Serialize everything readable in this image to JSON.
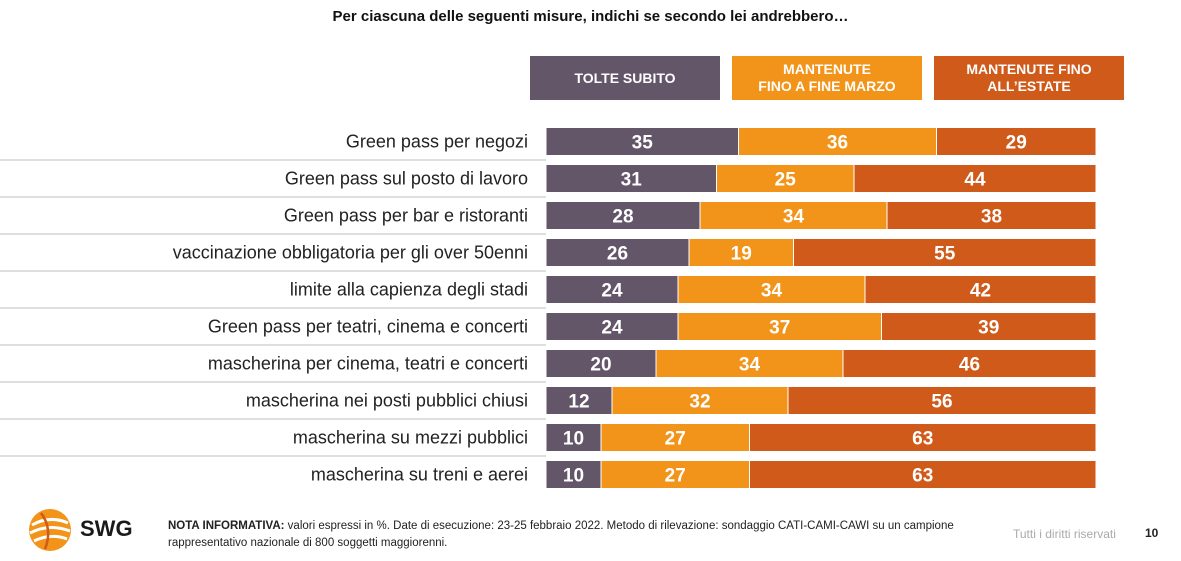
{
  "title": "Per ciascuna delle seguenti misure, indichi se secondo lei andrebbero…",
  "colors": {
    "tolte": "#635669",
    "fine_marzo": "#F29419",
    "estate": "#CF5A1A"
  },
  "chart_data": {
    "type": "bar",
    "orientation": "horizontal",
    "stacked": true,
    "title": "Per ciascuna delle seguenti misure, indichi se secondo lei andrebbero…",
    "legend_position": "top-right",
    "categories": [
      "Green pass per negozi",
      "Green pass sul posto di lavoro",
      "Green pass per bar e ristoranti",
      "vaccinazione obbligatoria per gli over 50enni",
      "limite alla capienza degli stadi",
      "Green pass per teatri, cinema e concerti",
      "mascherina per cinema, teatri e concerti",
      "mascherina nei posti pubblici chiusi",
      "mascherina su mezzi pubblici",
      "mascherina su treni e aerei"
    ],
    "series": [
      {
        "name": "TOLTE SUBITO",
        "color": "#635669",
        "values": [
          35,
          31,
          28,
          26,
          24,
          24,
          20,
          12,
          10,
          10
        ]
      },
      {
        "name": "MANTENUTE FINO A FINE MARZO",
        "color": "#F29419",
        "values": [
          36,
          25,
          34,
          19,
          34,
          37,
          34,
          32,
          27,
          27
        ]
      },
      {
        "name": "MANTENUTE FINO ALL’ESTATE",
        "color": "#CF5A1A",
        "values": [
          29,
          44,
          38,
          55,
          42,
          39,
          46,
          56,
          63,
          63
        ]
      }
    ]
  },
  "legend": {
    "tolte": "TOLTE SUBITO",
    "fine_marzo_line1": "MANTENUTE",
    "fine_marzo_line2": "FINO A FINE MARZO",
    "estate_line1": "MANTENUTE FINO",
    "estate_line2": "ALL’ESTATE"
  },
  "footer": {
    "logo_text": "SWG",
    "note_label": "NOTA INFORMATIVA:",
    "note_text": " valori espressi in %. Date di esecuzione: 23-25 febbraio 2022. Metodo di rilevazione: sondaggio CATI-CAMI-CAWI su un campione rappresentativo nazionale di 800 soggetti maggiorenni.",
    "rights": "Tutti i diritti riservati",
    "page_number": "10"
  }
}
